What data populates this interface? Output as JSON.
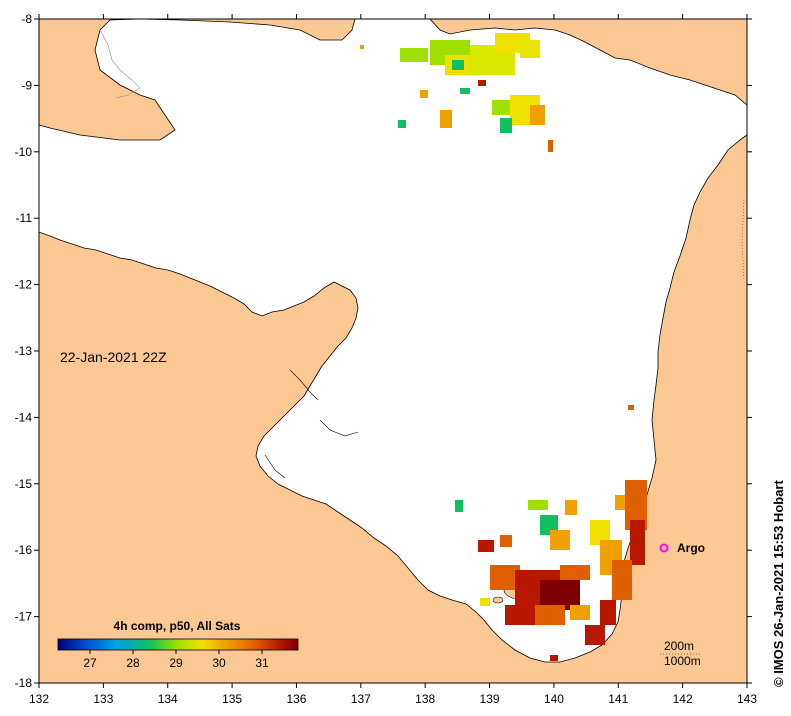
{
  "map": {
    "timestamp": "22-Jan-2021 22Z",
    "legend_title": "4h comp, p50, All Sats",
    "legend_ticks": [
      "27",
      "28",
      "29",
      "30",
      "31"
    ],
    "argo_label": "Argo",
    "depth_contours": [
      "200m",
      "1000m"
    ],
    "credit": "© IMOS 26-Jan-2021 15:53 Hobart",
    "x_ticks": [
      "132",
      "133",
      "134",
      "135",
      "136",
      "137",
      "138",
      "139",
      "140",
      "141",
      "142",
      "143"
    ],
    "y_ticks": [
      "-8",
      "-9",
      "-10",
      "-11",
      "-12",
      "-13",
      "-14",
      "-15",
      "-16",
      "-17",
      "-18"
    ],
    "colors": {
      "land": "#fbc893",
      "coast": "#000000",
      "colormap": [
        "#00007f",
        "#0050d0",
        "#00a0e8",
        "#10c060",
        "#a0e000",
        "#f0e000",
        "#f0a000",
        "#e06000",
        "#b81800",
        "#7f0000"
      ],
      "argo": "#ff00ff"
    }
  }
}
